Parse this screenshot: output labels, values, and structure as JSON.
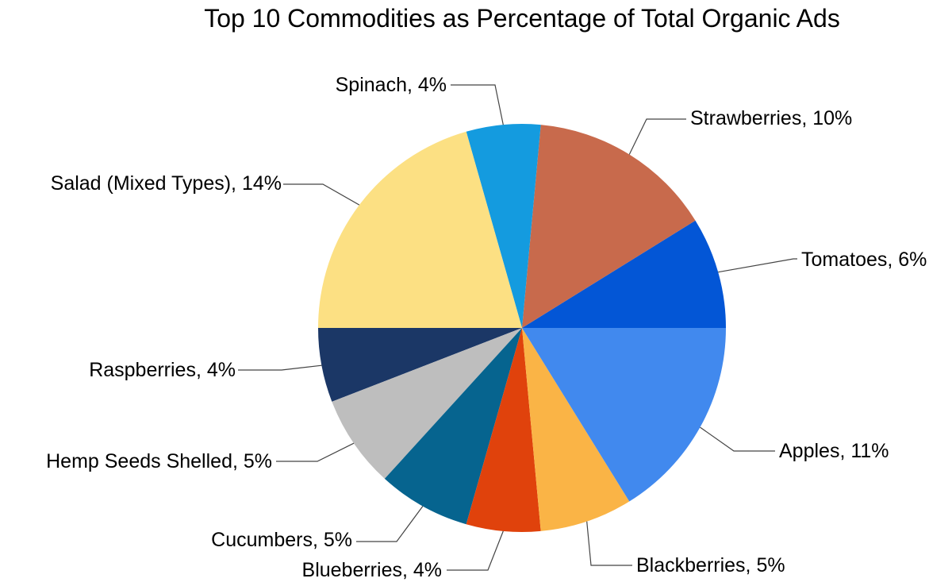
{
  "chart_data": {
    "type": "pie",
    "title": "Top 10 Commodities as Percentage of Total Organic Ads",
    "start_angle_deg": 90,
    "direction": "counterclockwise",
    "slices": [
      {
        "name": "Tomatoes",
        "value": 6,
        "label": "Tomatoes, 6%",
        "color": "#0356D6"
      },
      {
        "name": "Strawberries",
        "value": 10,
        "label": "Strawberries, 10%",
        "color": "#C86A4C"
      },
      {
        "name": "Spinach",
        "value": 4,
        "label": "Spinach, 4%",
        "color": "#149BDF"
      },
      {
        "name": "Salad (Mixed Types)",
        "value": 14,
        "label": "Salad (Mixed Types), 14%",
        "color": "#FCE083"
      },
      {
        "name": "Raspberries",
        "value": 4,
        "label": "Raspberries, 4%",
        "color": "#1B3766"
      },
      {
        "name": "Hemp Seeds Shelled",
        "value": 5,
        "label": "Hemp Seeds Shelled, 5%",
        "color": "#BEBEBE"
      },
      {
        "name": "Cucumbers",
        "value": 5,
        "label": "Cucumbers, 5%",
        "color": "#06648F"
      },
      {
        "name": "Blueberries",
        "value": 4,
        "label": "Blueberries, 4%",
        "color": "#E0420C"
      },
      {
        "name": "Blackberries",
        "value": 5,
        "label": "Blackberries, 5%",
        "color": "#FAB446"
      },
      {
        "name": "Apples",
        "value": 11,
        "label": "Apples, 11%",
        "color": "#4189EE"
      }
    ]
  }
}
